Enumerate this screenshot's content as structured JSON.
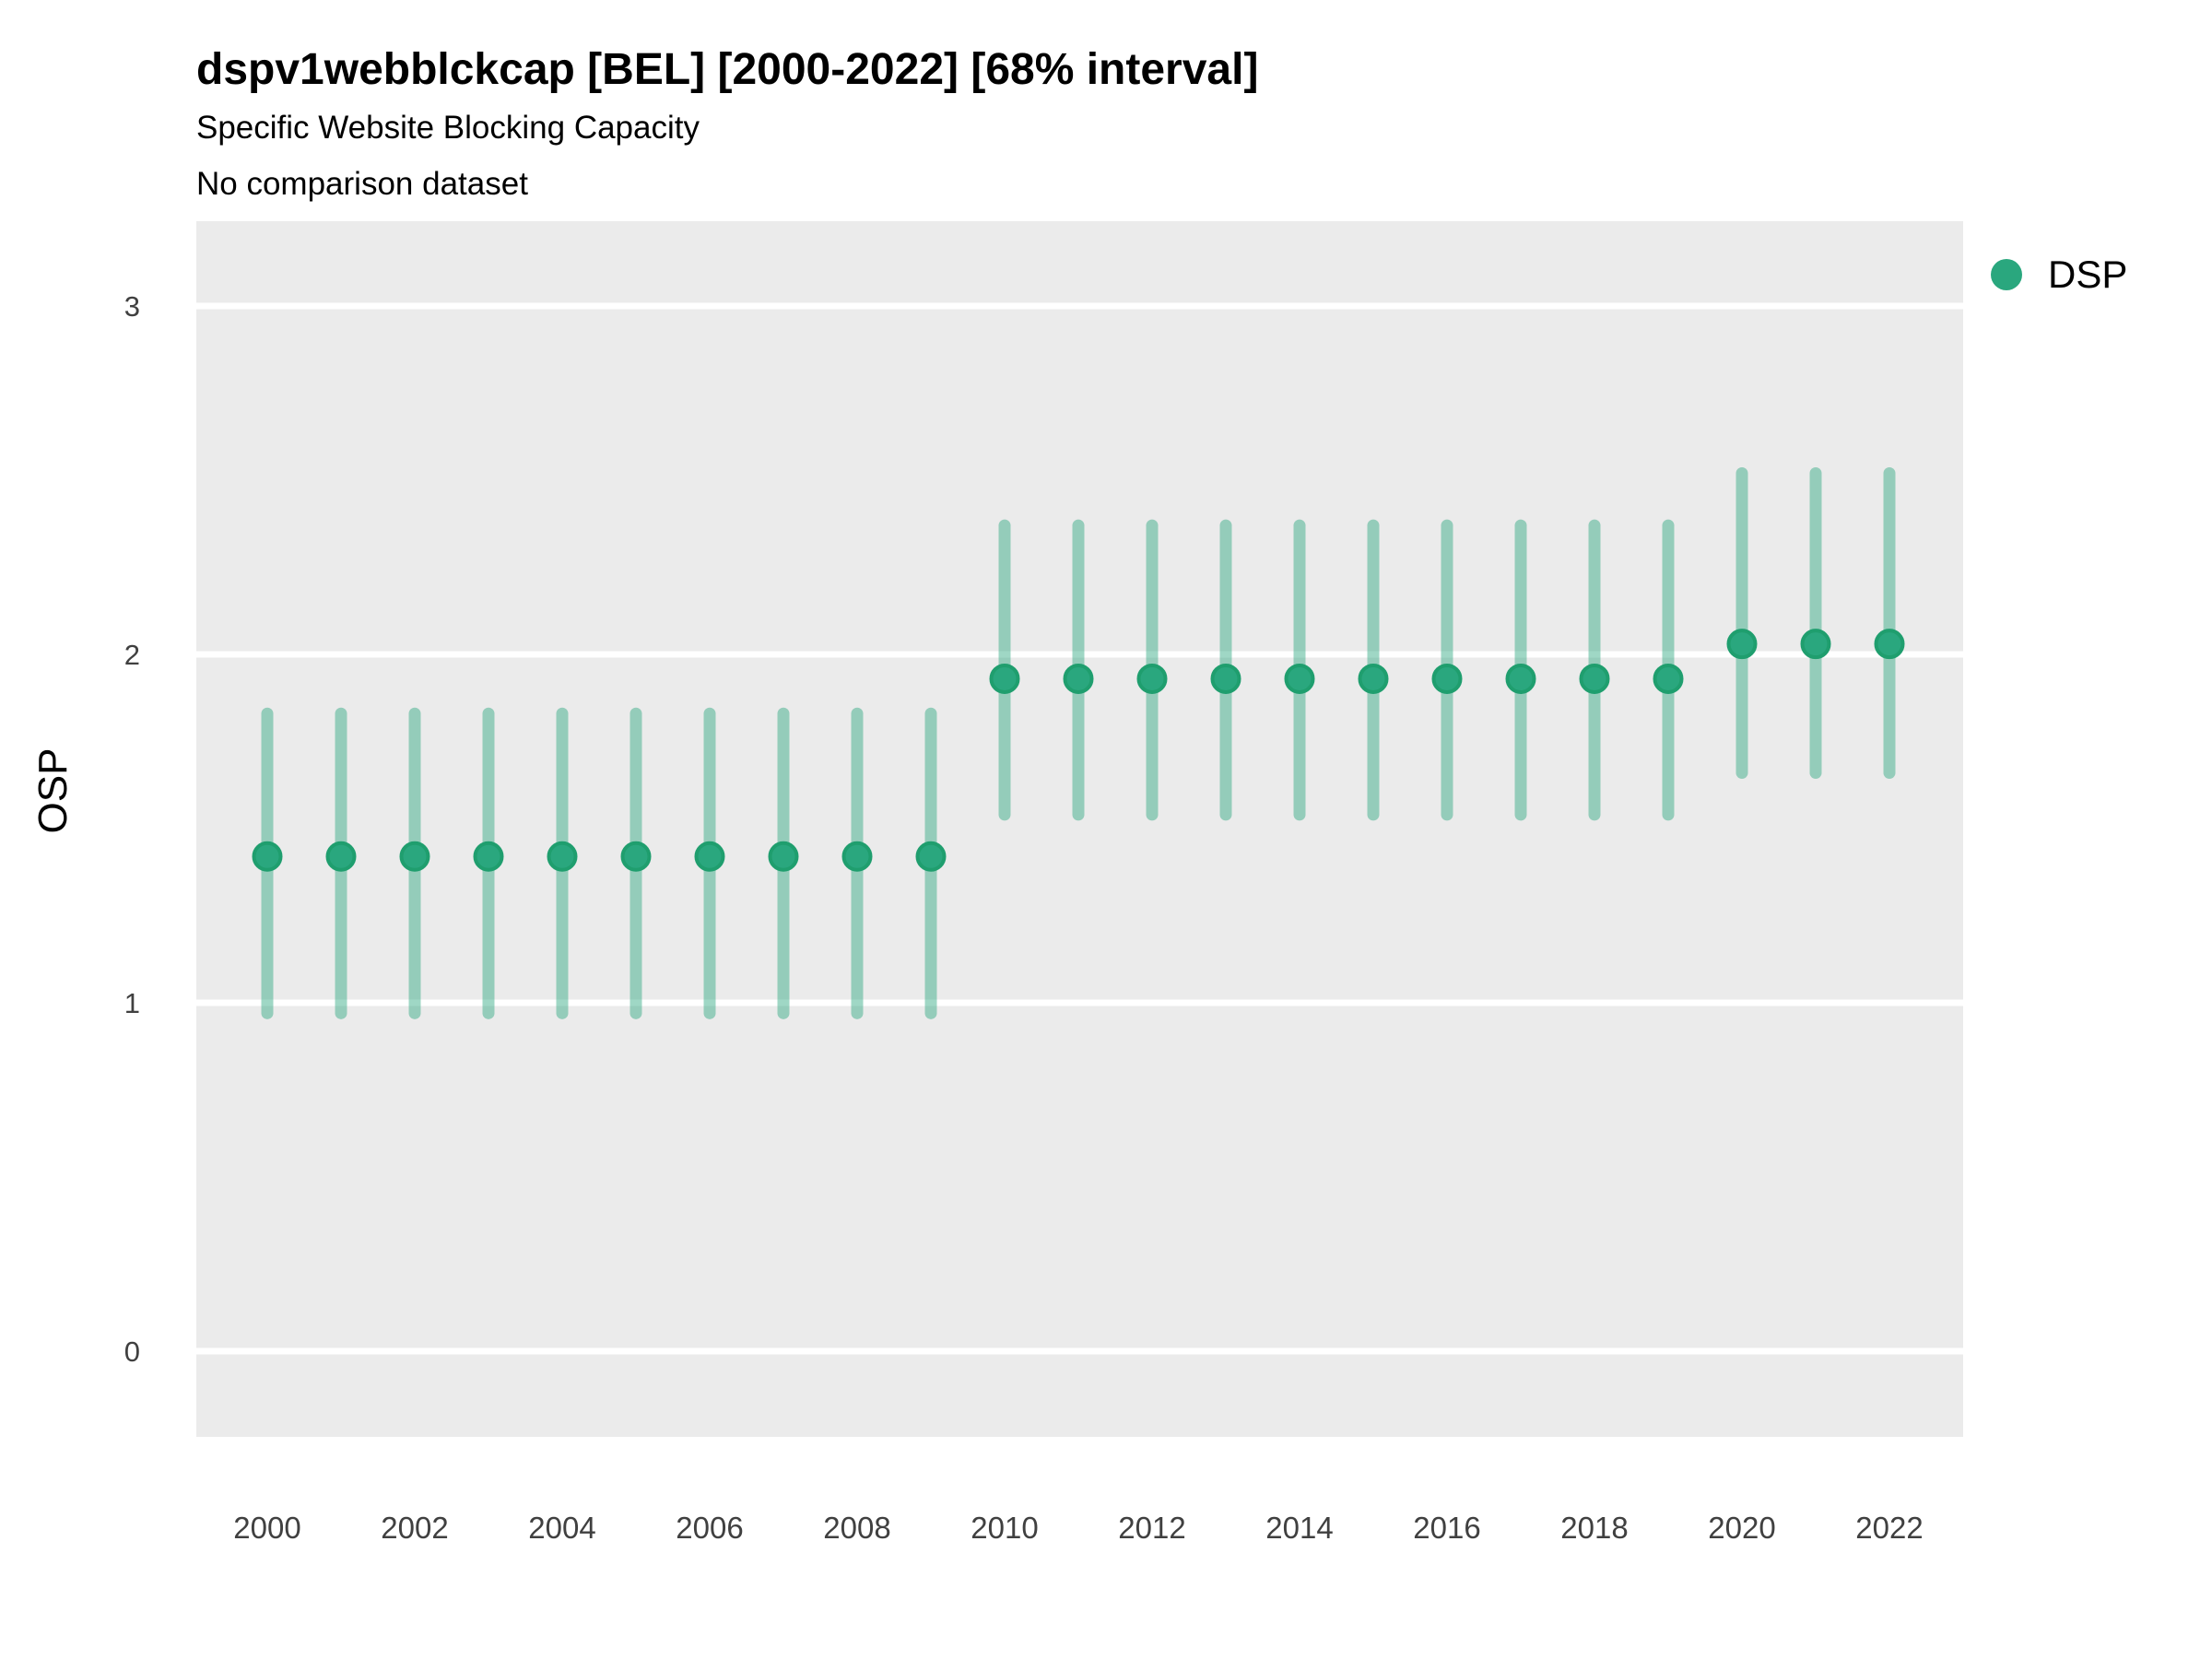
{
  "header": {
    "title": "dspv1webblckcap [BEL] [2000-2022] [68% interval]",
    "subtitle": "Specific Website Blocking Capacity",
    "comparison_note": "No comparison dataset"
  },
  "legend": {
    "position": "right",
    "entries": [
      {
        "label": "DSP",
        "color": "#2aa77e"
      }
    ]
  },
  "chart_data": {
    "type": "scatter",
    "variant": "pointrange",
    "title": "dspv1webblckcap [BEL] [2000-2022] [68% interval]",
    "subtitle": "Specific Website Blocking Capacity",
    "note": "No comparison dataset",
    "xlabel": "",
    "ylabel": "OSP",
    "interval_level": "68%",
    "x": [
      2000,
      2001,
      2002,
      2003,
      2004,
      2005,
      2006,
      2007,
      2008,
      2009,
      2010,
      2011,
      2012,
      2013,
      2014,
      2015,
      2016,
      2017,
      2018,
      2019,
      2020,
      2021,
      2022
    ],
    "series": [
      {
        "name": "DSP",
        "estimates": [
          1.42,
          1.42,
          1.42,
          1.42,
          1.42,
          1.42,
          1.42,
          1.42,
          1.42,
          1.42,
          1.93,
          1.93,
          1.93,
          1.93,
          1.93,
          1.93,
          1.93,
          1.93,
          1.93,
          1.93,
          2.03,
          2.03,
          2.03
        ],
        "lower_68": [
          0.97,
          0.97,
          0.97,
          0.97,
          0.97,
          0.97,
          0.97,
          0.97,
          0.97,
          0.97,
          1.54,
          1.54,
          1.54,
          1.54,
          1.54,
          1.54,
          1.54,
          1.54,
          1.54,
          1.54,
          1.66,
          1.66,
          1.66
        ],
        "upper_68": [
          1.83,
          1.83,
          1.83,
          1.83,
          1.83,
          1.83,
          1.83,
          1.83,
          1.83,
          1.83,
          2.37,
          2.37,
          2.37,
          2.37,
          2.37,
          2.37,
          2.37,
          2.37,
          2.37,
          2.37,
          2.52,
          2.52,
          2.52
        ]
      }
    ],
    "xticks": [
      2000,
      2002,
      2004,
      2006,
      2008,
      2010,
      2012,
      2014,
      2016,
      2018,
      2020,
      2022
    ],
    "yticks": [
      0,
      1,
      2,
      3
    ],
    "ylim": [
      0,
      3
    ],
    "legend_position": "right",
    "grid": "horizontal-major-only",
    "panel_bg": "#ebebeb",
    "gridline_color": "#ffffff",
    "point_color": "#2aa77e",
    "point_stroke_color": "#1f9e6e",
    "interval_color": "rgba(42,167,126,0.45)",
    "tick_label_color": "#404040"
  }
}
